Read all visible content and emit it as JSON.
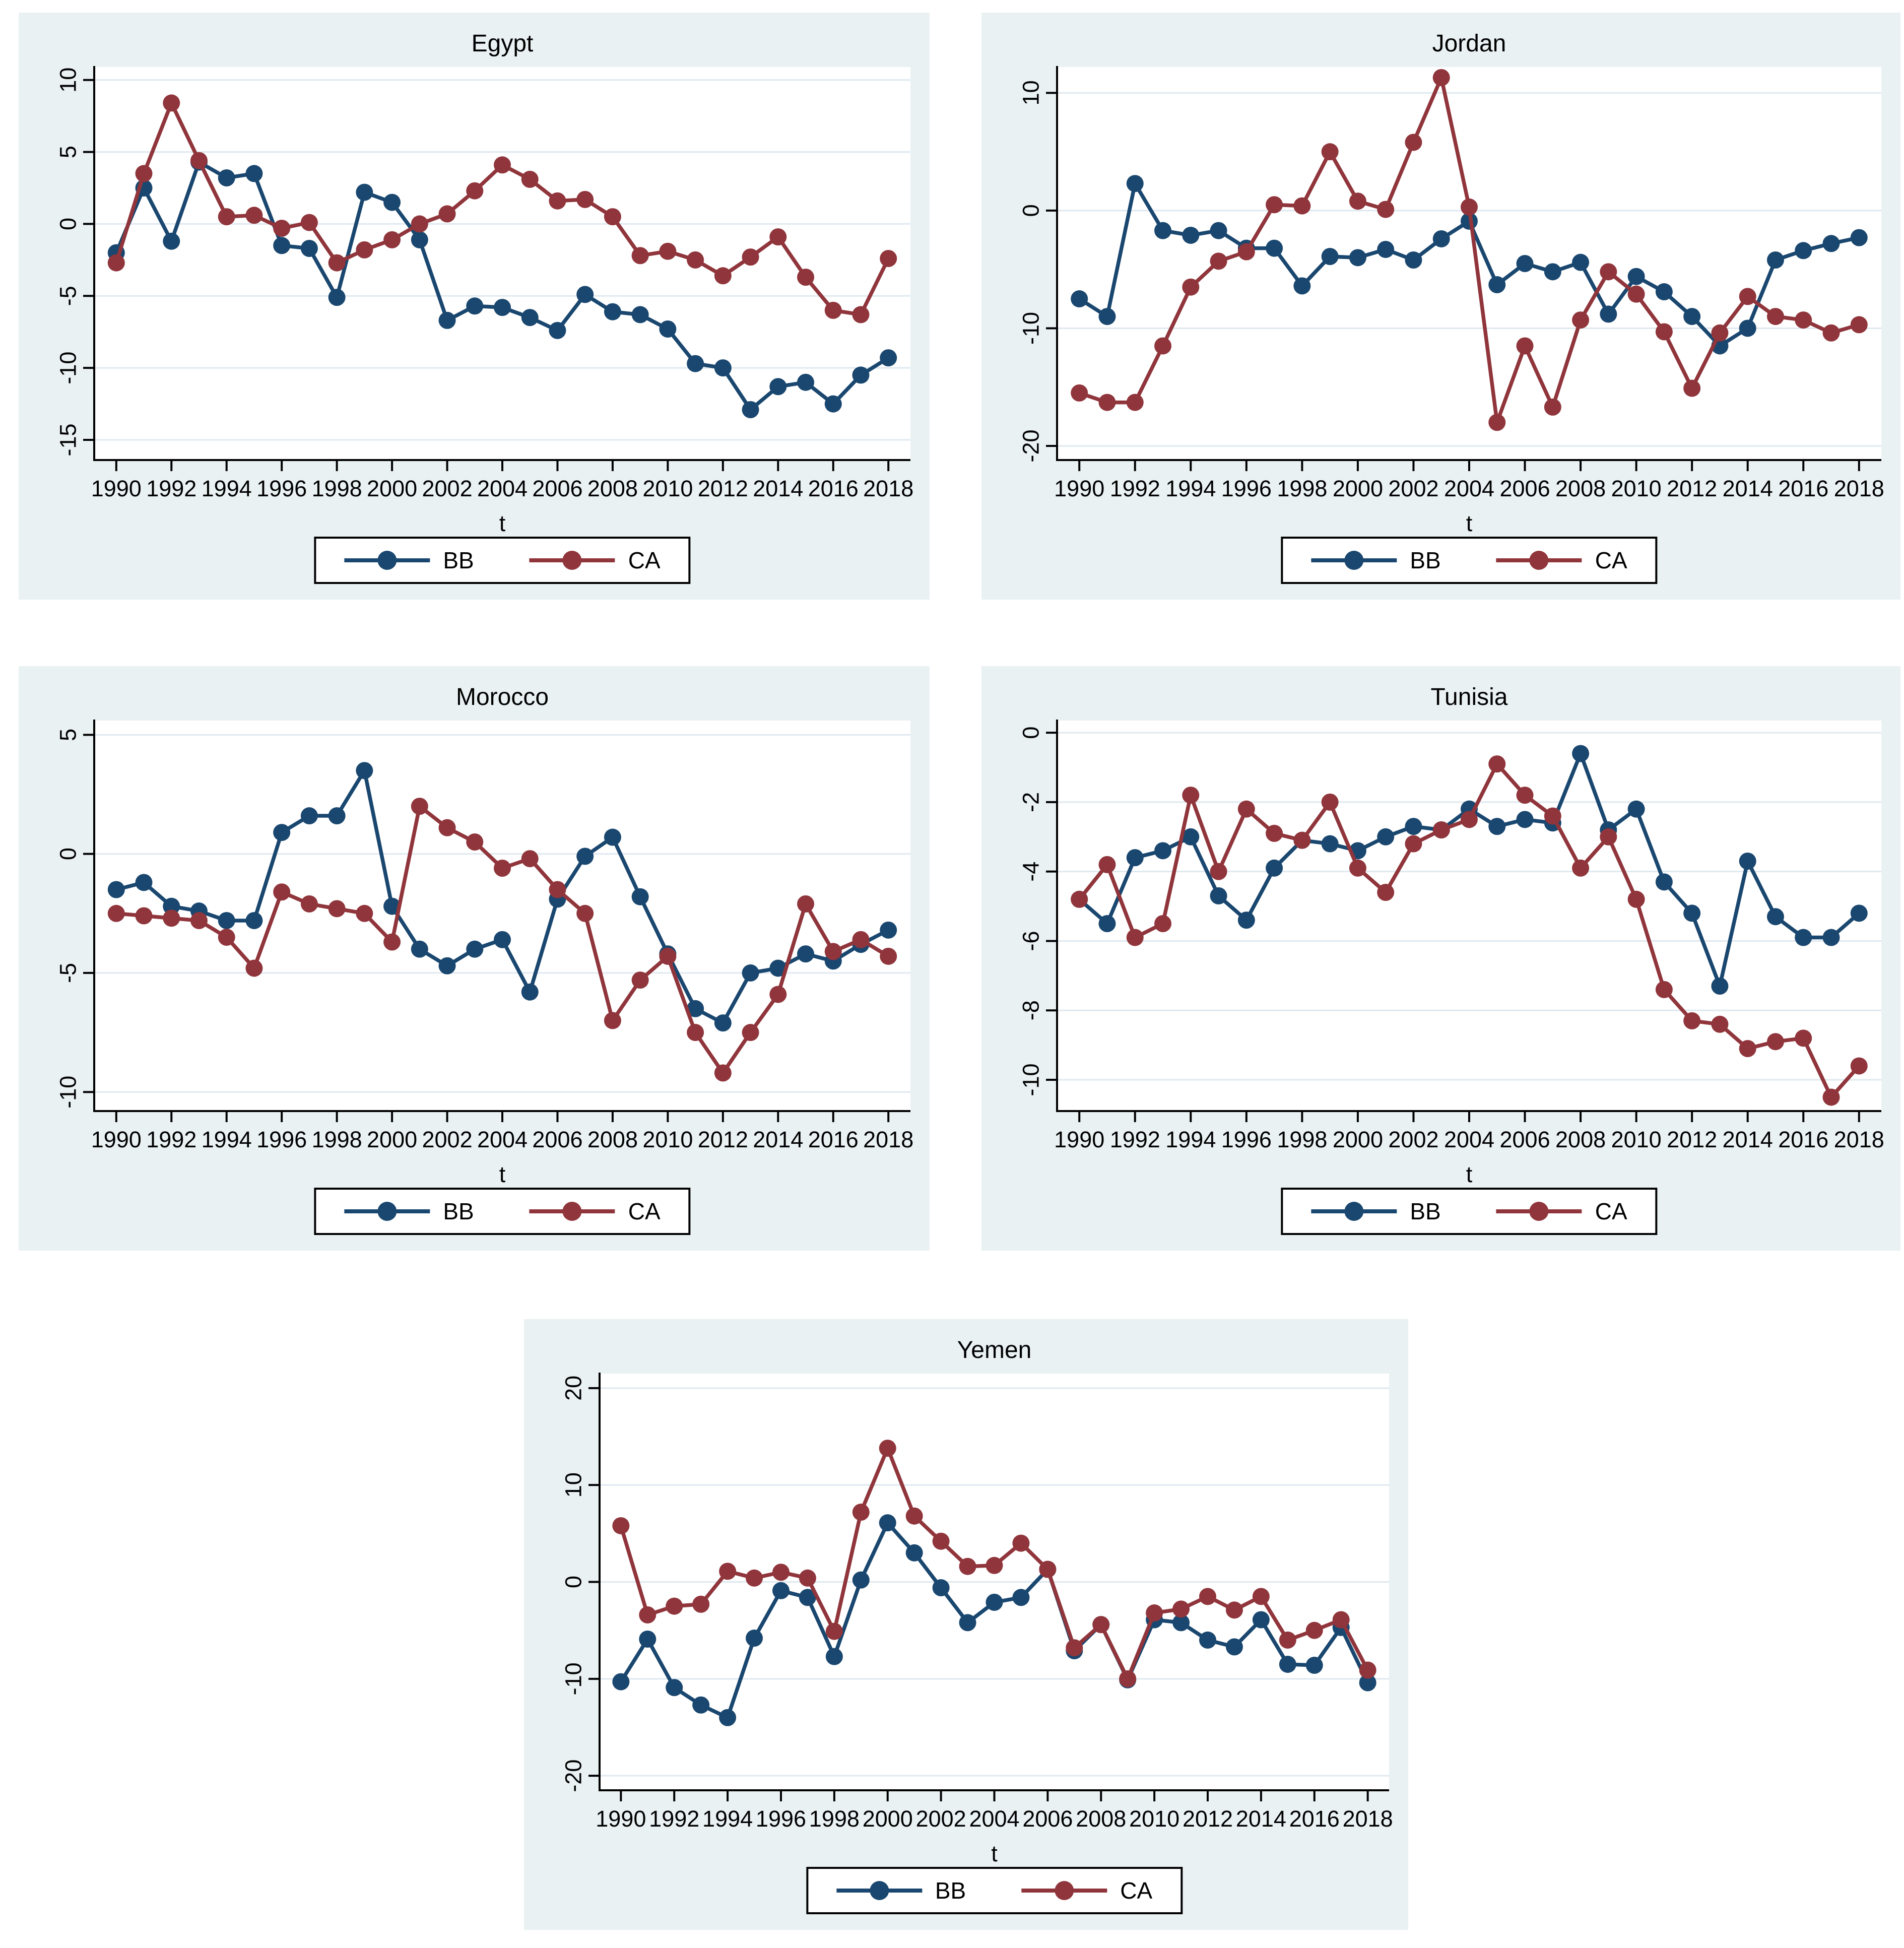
{
  "colors": {
    "bb": "#1a476f",
    "ca": "#90353b",
    "panel_bg": "#eaf1f3",
    "plot_bg": "#ffffff",
    "grid": "#dfe9f0",
    "axis": "#000000",
    "text": "#000000",
    "legend_border": "#000000"
  },
  "legend": {
    "bb_label": "BB",
    "ca_label": "CA"
  },
  "chart_data": [
    {
      "type": "line",
      "title": "Egypt",
      "xlabel": "t",
      "grid": true,
      "legend_position": "bottom",
      "x": [
        1990,
        1991,
        1992,
        1993,
        1994,
        1995,
        1996,
        1997,
        1998,
        1999,
        2000,
        2001,
        2002,
        2003,
        2004,
        2005,
        2006,
        2007,
        2008,
        2009,
        2010,
        2011,
        2012,
        2013,
        2014,
        2015,
        2016,
        2017,
        2018
      ],
      "xticks": [
        1990,
        1992,
        1994,
        1996,
        1998,
        2000,
        2002,
        2004,
        2006,
        2008,
        2010,
        2012,
        2014,
        2016,
        2018
      ],
      "yticks": [
        10,
        5,
        0,
        -5,
        -10,
        -15
      ],
      "ylim": [
        -16.4,
        10.9
      ],
      "series": [
        {
          "name": "BB",
          "color": "#1a476f",
          "values": [
            -2.0,
            2.5,
            -1.2,
            4.3,
            3.2,
            3.5,
            -1.5,
            -1.7,
            -5.1,
            2.2,
            1.5,
            -1.1,
            -6.7,
            -5.7,
            -5.8,
            -6.5,
            -7.4,
            -4.9,
            -6.1,
            -6.3,
            -7.3,
            -9.7,
            -10.0,
            -12.9,
            -11.3,
            -11.0,
            -12.5,
            -10.5,
            -9.3
          ]
        },
        {
          "name": "CA",
          "color": "#90353b",
          "values": [
            -2.7,
            3.5,
            8.4,
            4.4,
            0.5,
            0.6,
            -0.3,
            0.1,
            -2.7,
            -1.8,
            -1.1,
            0.0,
            0.7,
            2.3,
            4.1,
            3.1,
            1.6,
            1.7,
            0.5,
            -2.2,
            -1.9,
            -2.5,
            -3.6,
            -2.3,
            -0.9,
            -3.7,
            -6.0,
            -6.3,
            -2.4
          ]
        }
      ]
    },
    {
      "type": "line",
      "title": "Jordan",
      "xlabel": "t",
      "grid": true,
      "legend_position": "bottom",
      "x": [
        1990,
        1991,
        1992,
        1993,
        1994,
        1995,
        1996,
        1997,
        1998,
        1999,
        2000,
        2001,
        2002,
        2003,
        2004,
        2005,
        2006,
        2007,
        2008,
        2009,
        2010,
        2011,
        2012,
        2013,
        2014,
        2015,
        2016,
        2017,
        2018
      ],
      "xticks": [
        1990,
        1992,
        1994,
        1996,
        1998,
        2000,
        2002,
        2004,
        2006,
        2008,
        2010,
        2012,
        2014,
        2016,
        2018
      ],
      "yticks": [
        10,
        0,
        -10,
        -20
      ],
      "ylim": [
        -21.2,
        12.2
      ],
      "series": [
        {
          "name": "BB",
          "color": "#1a476f",
          "values": [
            -7.5,
            -9.0,
            2.3,
            -1.7,
            -2.1,
            -1.7,
            -3.2,
            -3.2,
            -6.4,
            -3.9,
            -4.0,
            -3.3,
            -4.2,
            -2.4,
            -0.9,
            -6.3,
            -4.5,
            -5.2,
            -4.4,
            -8.8,
            -5.6,
            -6.9,
            -9.0,
            -11.5,
            -10.0,
            -4.2,
            -3.4,
            -2.8,
            -2.3
          ]
        },
        {
          "name": "CA",
          "color": "#90353b",
          "values": [
            -15.5,
            -16.3,
            -16.3,
            -11.5,
            -6.5,
            -4.3,
            -3.5,
            0.5,
            0.4,
            5.0,
            0.8,
            0.1,
            5.8,
            11.3,
            0.3,
            -18.0,
            -11.5,
            -16.7,
            -9.3,
            -5.2,
            -7.1,
            -10.3,
            -15.1,
            -10.4,
            -7.3,
            -9.0,
            -9.3,
            -10.4,
            -9.7
          ]
        }
      ]
    },
    {
      "type": "line",
      "title": "Morocco",
      "xlabel": "t",
      "grid": true,
      "legend_position": "bottom",
      "x": [
        1990,
        1991,
        1992,
        1993,
        1994,
        1995,
        1996,
        1997,
        1998,
        1999,
        2000,
        2001,
        2002,
        2003,
        2004,
        2005,
        2006,
        2007,
        2008,
        2009,
        2010,
        2011,
        2012,
        2013,
        2014,
        2015,
        2016,
        2017,
        2018
      ],
      "xticks": [
        1990,
        1992,
        1994,
        1996,
        1998,
        2000,
        2002,
        2004,
        2006,
        2008,
        2010,
        2012,
        2014,
        2016,
        2018
      ],
      "yticks": [
        5,
        0,
        -5,
        -10
      ],
      "ylim": [
        -10.8,
        5.6
      ],
      "series": [
        {
          "name": "BB",
          "color": "#1a476f",
          "values": [
            -1.5,
            -1.2,
            -2.2,
            -2.4,
            -2.8,
            -2.8,
            0.9,
            1.6,
            1.6,
            3.5,
            -2.2,
            -4.0,
            -4.7,
            -4.0,
            -3.6,
            -5.8,
            -1.9,
            -0.1,
            0.7,
            -1.8,
            -4.2,
            -6.5,
            -7.1,
            -5.0,
            -4.8,
            -4.2,
            -4.5,
            -3.8,
            -3.2
          ]
        },
        {
          "name": "CA",
          "color": "#90353b",
          "values": [
            -2.5,
            -2.6,
            -2.7,
            -2.8,
            -3.5,
            -4.8,
            -1.6,
            -2.1,
            -2.3,
            -2.5,
            -3.7,
            2.0,
            1.1,
            0.5,
            -0.6,
            -0.2,
            -1.5,
            -2.5,
            -7.0,
            -5.3,
            -4.3,
            -7.5,
            -9.2,
            -7.5,
            -5.9,
            -2.1,
            -4.1,
            -3.6,
            -4.3
          ]
        }
      ]
    },
    {
      "type": "line",
      "title": "Tunisia",
      "xlabel": "t",
      "grid": true,
      "legend_position": "bottom",
      "x": [
        1990,
        1991,
        1992,
        1993,
        1994,
        1995,
        1996,
        1997,
        1998,
        1999,
        2000,
        2001,
        2002,
        2003,
        2004,
        2005,
        2006,
        2007,
        2008,
        2009,
        2010,
        2011,
        2012,
        2013,
        2014,
        2015,
        2016,
        2017,
        2018
      ],
      "xticks": [
        1990,
        1992,
        1994,
        1996,
        1998,
        2000,
        2002,
        2004,
        2006,
        2008,
        2010,
        2012,
        2014,
        2016,
        2018
      ],
      "yticks": [
        0,
        -2,
        -4,
        -6,
        -8,
        -10
      ],
      "ylim": [
        -10.9,
        0.35
      ],
      "series": [
        {
          "name": "BB",
          "color": "#1a476f",
          "values": [
            -4.8,
            -5.5,
            -3.6,
            -3.4,
            -3.0,
            -4.7,
            -5.4,
            -3.9,
            -3.1,
            -3.2,
            -3.4,
            -3.0,
            -2.7,
            -2.8,
            -2.2,
            -2.7,
            -2.5,
            -2.6,
            -0.6,
            -2.8,
            -2.2,
            -4.3,
            -5.2,
            -7.3,
            -3.7,
            -5.3,
            -5.9,
            -5.9,
            -5.2
          ]
        },
        {
          "name": "CA",
          "color": "#90353b",
          "values": [
            -4.8,
            -3.8,
            -5.9,
            -5.5,
            -1.8,
            -4.0,
            -2.2,
            -2.9,
            -3.1,
            -2.0,
            -3.9,
            -4.6,
            -3.2,
            -2.8,
            -2.5,
            -0.9,
            -1.8,
            -2.4,
            -3.9,
            -3.0,
            -4.8,
            -7.4,
            -8.3,
            -8.4,
            -9.1,
            -8.9,
            -8.8,
            -10.5,
            -9.6
          ]
        }
      ]
    },
    {
      "type": "line",
      "title": "Yemen",
      "xlabel": "t",
      "grid": true,
      "legend_position": "bottom",
      "x": [
        1990,
        1991,
        1992,
        1993,
        1994,
        1995,
        1996,
        1997,
        1998,
        1999,
        2000,
        2001,
        2002,
        2003,
        2004,
        2005,
        2006,
        2007,
        2008,
        2009,
        2010,
        2011,
        2012,
        2013,
        2014,
        2015,
        2016,
        2017,
        2018
      ],
      "xticks": [
        1990,
        1992,
        1994,
        1996,
        1998,
        2000,
        2002,
        2004,
        2006,
        2008,
        2010,
        2012,
        2014,
        2016,
        2018
      ],
      "yticks": [
        20,
        10,
        0,
        -10,
        -20
      ],
      "ylim": [
        -21.5,
        21.5
      ],
      "series": [
        {
          "name": "BB",
          "color": "#1a476f",
          "values": [
            -10.3,
            -5.9,
            -10.9,
            -12.7,
            -14.0,
            -5.8,
            -0.9,
            -1.6,
            -7.7,
            0.2,
            6.1,
            3.0,
            -0.6,
            -4.2,
            -2.1,
            -1.6,
            1.3,
            -7.1,
            -4.4,
            -10.1,
            -3.9,
            -4.2,
            -6.0,
            -6.7,
            -3.9,
            -8.5,
            -8.6,
            -4.7,
            -10.4
          ]
        },
        {
          "name": "CA",
          "color": "#90353b",
          "values": [
            5.8,
            -3.4,
            -2.5,
            -2.3,
            1.1,
            0.4,
            1.0,
            0.4,
            -5.1,
            7.2,
            13.8,
            6.8,
            4.2,
            1.6,
            1.7,
            4.0,
            1.3,
            -6.8,
            -4.4,
            -10.0,
            -3.2,
            -2.8,
            -1.5,
            -2.9,
            -1.5,
            -6.0,
            -5.0,
            -3.9,
            -9.1
          ]
        }
      ]
    }
  ]
}
